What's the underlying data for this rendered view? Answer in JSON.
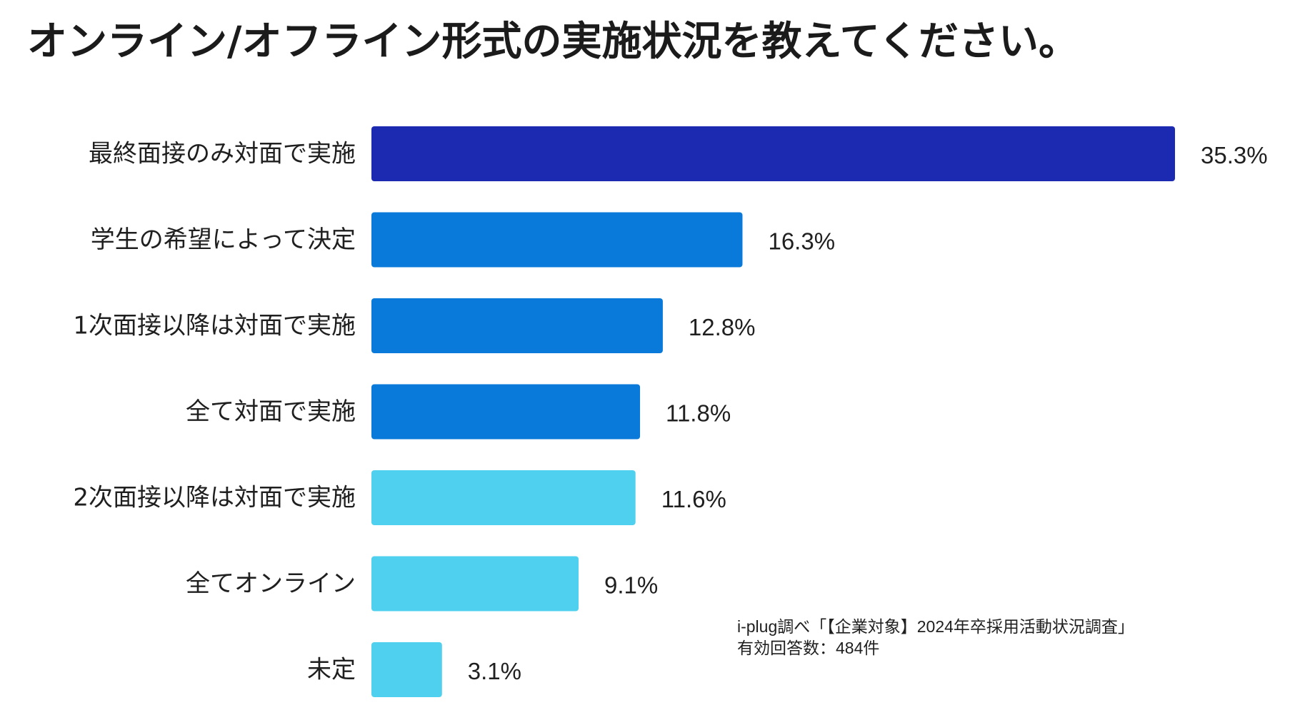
{
  "title": "オンライン/オフライン形式の実施状況を教えてください。",
  "source_note": {
    "line1": "i-plug調べ「【企業対象】2024年卒採用活動状況調査」",
    "line2": "有効回答数：484件"
  },
  "colors": {
    "dark_blue": "#1b2ab0",
    "mid_blue": "#0a7ada",
    "light_blue": "#4fd0ef",
    "text": "#1f1f1f"
  },
  "chart_data": {
    "type": "bar",
    "orientation": "horizontal",
    "title": "オンライン/オフライン形式の実施状況を教えてください。",
    "categories": [
      "最終面接のみ対面で実施",
      "学生の希望によって決定",
      "1次面接以降は対面で実施",
      "全て対面で実施",
      "2次面接以降は対面で実施",
      "全てオンライン",
      "未定"
    ],
    "values": [
      35.3,
      16.3,
      12.8,
      11.8,
      11.6,
      9.1,
      3.1
    ],
    "data_labels": [
      "35.3%",
      "16.3%",
      "12.8%",
      "11.8%",
      "11.6%",
      "9.1%",
      "3.1%"
    ],
    "bar_colors": [
      "#1b2ab0",
      "#0a7ada",
      "#0a7ada",
      "#0a7ada",
      "#4fd0ef",
      "#4fd0ef",
      "#4fd0ef"
    ],
    "xlim": [
      0,
      35.3
    ],
    "grid": false,
    "legend": "none",
    "xlabel": "",
    "ylabel": ""
  }
}
